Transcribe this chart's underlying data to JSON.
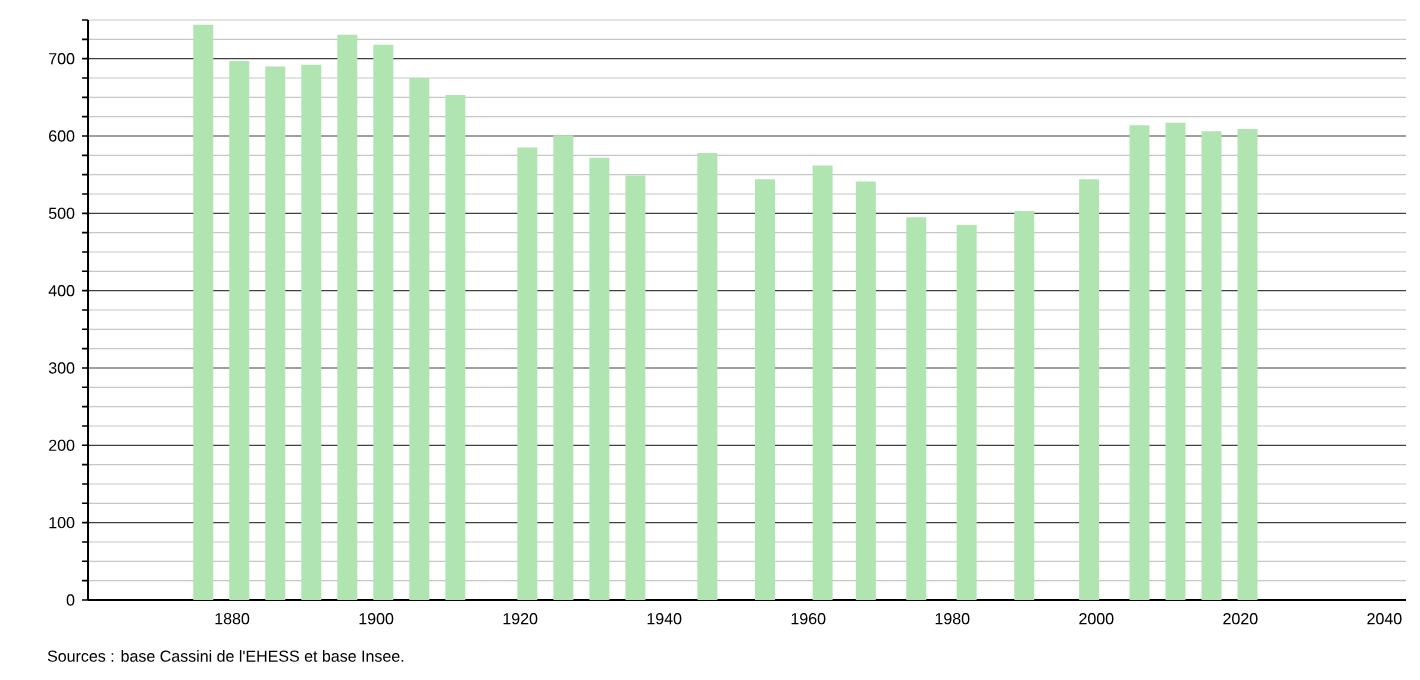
{
  "chart_data": {
    "type": "bar",
    "color": "#b0e4b0",
    "x": [
      1876,
      1881,
      1886,
      1891,
      1896,
      1901,
      1906,
      1911,
      1921,
      1926,
      1931,
      1936,
      1946,
      1954,
      1962,
      1968,
      1975,
      1982,
      1990,
      1999,
      2006,
      2011,
      2016,
      2021
    ],
    "values": [
      744,
      697,
      690,
      692,
      731,
      718,
      675,
      653,
      585,
      601,
      572,
      549,
      578,
      544,
      562,
      541,
      495,
      485,
      503,
      544,
      614,
      617,
      606,
      609
    ],
    "xlim": [
      1860,
      2043
    ],
    "xticks": [
      1880,
      1900,
      1920,
      1940,
      1960,
      1980,
      2000,
      2020,
      2040
    ],
    "ylim": [
      0,
      750
    ],
    "yticks": [
      0,
      {
        "value": 25,
        "label": null
      },
      {
        "value": 50,
        "label": null
      },
      {
        "value": 75,
        "label": null
      },
      100,
      {
        "value": 125,
        "label": null
      },
      {
        "value": 150,
        "label": null
      },
      {
        "value": 175,
        "label": null
      },
      200,
      {
        "value": 225,
        "label": null
      },
      {
        "value": 250,
        "label": null
      },
      {
        "value": 275,
        "label": null
      },
      300,
      {
        "value": 325,
        "label": null
      },
      {
        "value": 350,
        "label": null
      },
      {
        "value": 375,
        "label": null
      },
      400,
      {
        "value": 425,
        "label": null
      },
      {
        "value": 450,
        "label": null
      },
      {
        "value": 475,
        "label": null
      },
      500,
      {
        "value": 525,
        "label": null
      },
      {
        "value": 550,
        "label": null
      },
      {
        "value": 575,
        "label": null
      },
      600,
      {
        "value": 625,
        "label": null
      },
      {
        "value": 650,
        "label": null
      },
      {
        "value": 675,
        "label": null
      },
      700,
      {
        "value": 725,
        "label": null
      },
      {
        "value": 750,
        "label": null
      }
    ],
    "grid": "y",
    "annotations": [
      "Sources : base Cassini de l'EHESS et base Insee."
    ]
  }
}
